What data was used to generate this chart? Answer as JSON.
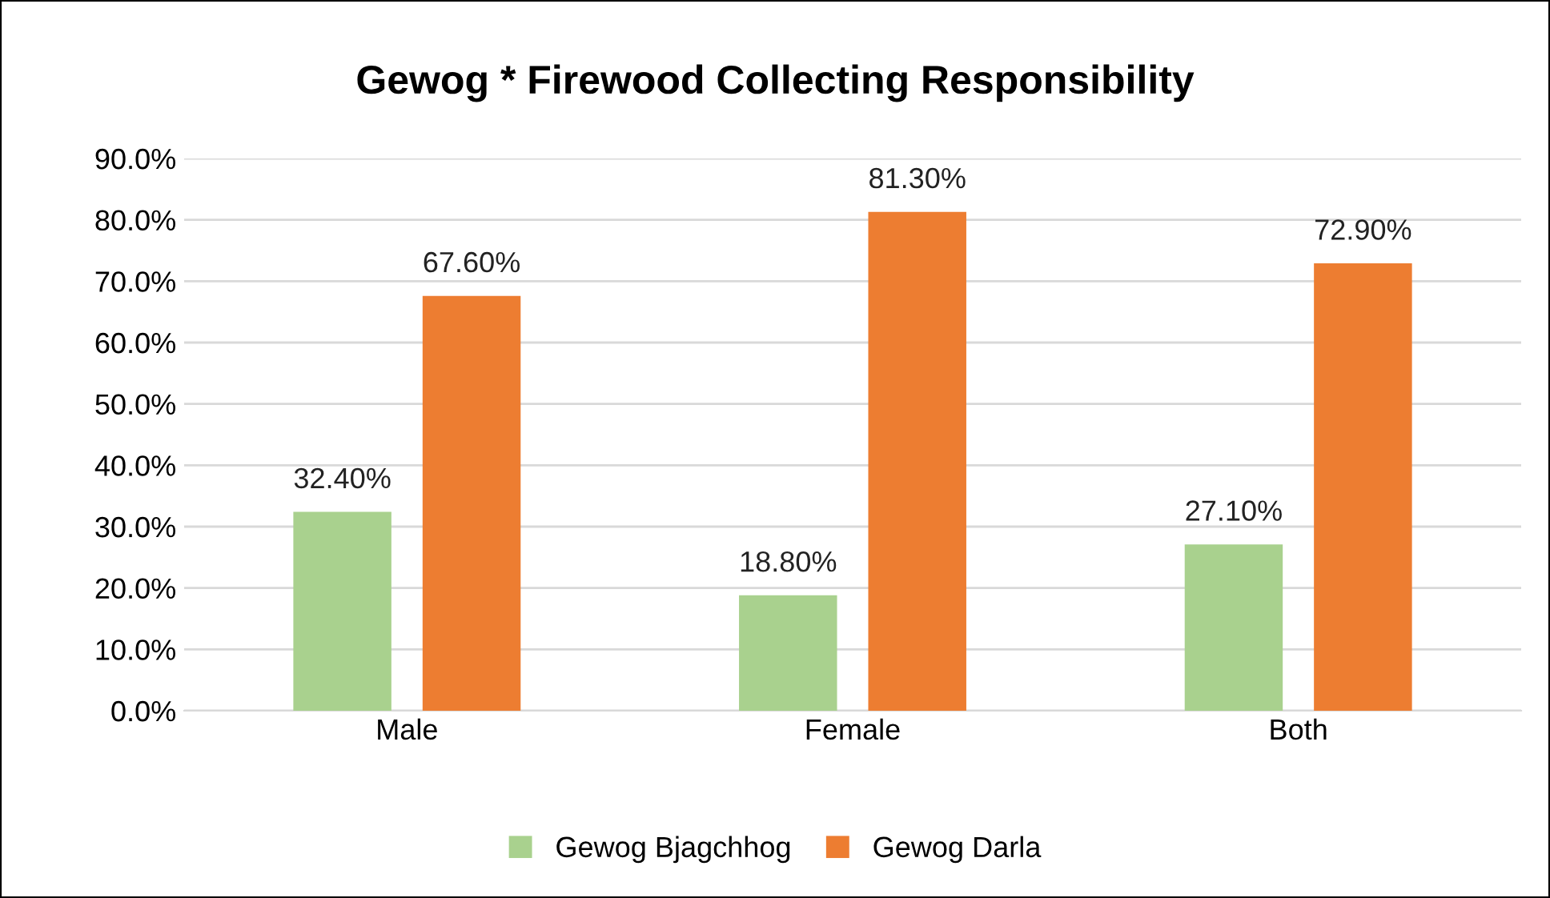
{
  "chart_data": {
    "type": "bar",
    "title": "Gewog * Firewood Collecting Responsibility",
    "categories": [
      "Male",
      "Female",
      "Both"
    ],
    "series": [
      {
        "name": "Gewog Bjagchhog",
        "color": "#a9d18e",
        "values": [
          32.4,
          18.8,
          27.1
        ],
        "value_labels": [
          "32.40%",
          "18.80%",
          "27.10%"
        ]
      },
      {
        "name": "Gewog Darla",
        "color": "#ed7d31",
        "values": [
          67.6,
          81.3,
          72.9
        ],
        "value_labels": [
          "67.60%",
          "81.30%",
          "72.90%"
        ]
      }
    ],
    "ylim": [
      0,
      90
    ],
    "yticks": [
      {
        "value": 0,
        "label": "0.0%"
      },
      {
        "value": 10,
        "label": "10.0%"
      },
      {
        "value": 20,
        "label": "20.0%"
      },
      {
        "value": 30,
        "label": "30.0%"
      },
      {
        "value": 40,
        "label": "40.0%"
      },
      {
        "value": 50,
        "label": "50.0%"
      },
      {
        "value": 60,
        "label": "60.0%"
      },
      {
        "value": 70,
        "label": "70.0%"
      },
      {
        "value": 80,
        "label": "80.0%"
      },
      {
        "value": 90,
        "label": "90.0%"
      }
    ],
    "grid": "y",
    "legend": "bottom"
  }
}
